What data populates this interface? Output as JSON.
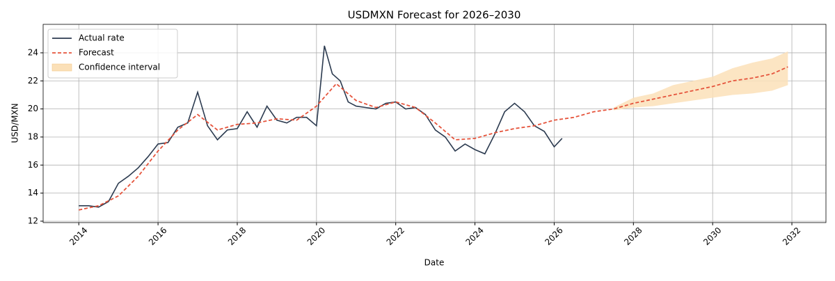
{
  "chart_data": {
    "type": "line",
    "title": "USDMXN Forecast for 2026–2030",
    "x_label": "Date",
    "y_label": "USD/MXN",
    "xlim": [
      2013.1,
      2032.86
    ],
    "xticks": [
      2014,
      2016,
      2018,
      2020,
      2022,
      2024,
      2026,
      2028,
      2030,
      2032
    ],
    "ylim": [
      11.9,
      26.03
    ],
    "yticks": [
      12,
      14,
      16,
      18,
      20,
      22,
      24
    ],
    "grid": true,
    "legend": "upper-left",
    "series": [
      {
        "name": "Actual rate",
        "color": "#2b3a4f",
        "dash": "solid",
        "x": [
          2014.0,
          2014.25,
          2014.5,
          2014.75,
          2015.0,
          2015.25,
          2015.5,
          2015.75,
          2016.0,
          2016.25,
          2016.5,
          2016.75,
          2017.0,
          2017.25,
          2017.5,
          2017.75,
          2018.0,
          2018.25,
          2018.5,
          2018.75,
          2019.0,
          2019.25,
          2019.5,
          2019.75,
          2020.0,
          2020.2,
          2020.4,
          2020.6,
          2020.8,
          2021.0,
          2021.25,
          2021.5,
          2021.75,
          2022.0,
          2022.25,
          2022.5,
          2022.75,
          2023.0,
          2023.25,
          2023.5,
          2023.75,
          2024.0,
          2024.25,
          2024.5,
          2024.75,
          2025.0,
          2025.25,
          2025.5,
          2025.75,
          2026.0,
          2026.2
        ],
        "values": [
          13.1,
          13.1,
          13.0,
          13.4,
          14.7,
          15.2,
          15.8,
          16.6,
          17.5,
          17.6,
          18.7,
          19.0,
          21.2,
          18.8,
          17.8,
          18.5,
          18.6,
          19.8,
          18.7,
          20.2,
          19.2,
          19.0,
          19.4,
          19.4,
          18.8,
          24.5,
          22.5,
          22.0,
          20.5,
          20.2,
          20.1,
          20.0,
          20.4,
          20.5,
          20.0,
          20.1,
          19.6,
          18.5,
          18.0,
          17.0,
          17.5,
          17.1,
          16.8,
          18.2,
          19.8,
          20.4,
          19.8,
          18.8,
          18.4,
          17.3,
          17.9
        ]
      },
      {
        "name": "Forecast",
        "color": "#e5533b",
        "dash": "dashed",
        "x": [
          2014.0,
          2014.5,
          2015.0,
          2015.5,
          2016.0,
          2016.5,
          2017.0,
          2017.5,
          2018.0,
          2018.5,
          2019.0,
          2019.5,
          2020.0,
          2020.5,
          2021.0,
          2021.5,
          2022.0,
          2022.5,
          2023.0,
          2023.5,
          2024.0,
          2024.5,
          2025.0,
          2025.5,
          2026.0,
          2026.5,
          2027.0,
          2027.5,
          2028.0,
          2028.5,
          2029.0,
          2029.5,
          2030.0,
          2030.5,
          2031.0,
          2031.5,
          2031.9
        ],
        "values": [
          12.8,
          13.1,
          13.8,
          15.2,
          17.0,
          18.5,
          19.6,
          18.5,
          18.9,
          19.0,
          19.3,
          19.2,
          20.2,
          21.8,
          20.6,
          20.1,
          20.5,
          20.1,
          19.0,
          17.8,
          17.9,
          18.3,
          18.6,
          18.8,
          19.2,
          19.4,
          19.8,
          20.0,
          20.4,
          20.7,
          21.0,
          21.3,
          21.6,
          22.0,
          22.2,
          22.5,
          23.0
        ]
      }
    ],
    "band": {
      "name": "Confidence interval",
      "color": "#fbe0b8",
      "x": [
        2027.5,
        2028.0,
        2028.5,
        2029.0,
        2029.5,
        2030.0,
        2030.5,
        2031.0,
        2031.5,
        2031.9
      ],
      "lower": [
        19.9,
        20.1,
        20.2,
        20.4,
        20.6,
        20.8,
        21.0,
        21.1,
        21.3,
        21.7
      ],
      "upper": [
        20.1,
        20.8,
        21.1,
        21.7,
        22.0,
        22.3,
        22.9,
        23.3,
        23.6,
        24.1
      ]
    }
  }
}
